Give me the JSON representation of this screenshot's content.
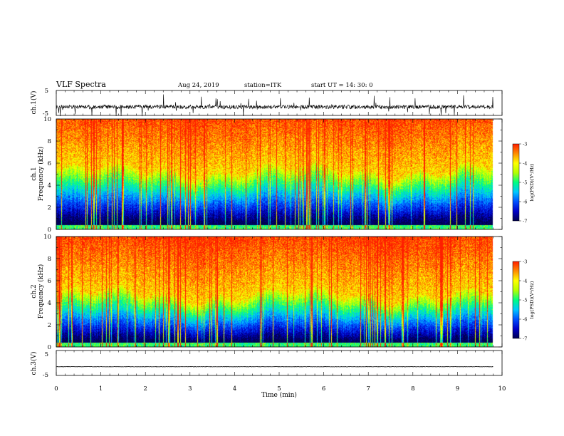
{
  "header": {
    "title": "VLF Spectra",
    "date": "Aug 24, 2019",
    "station": "station=ITK",
    "start": "start UT =  14: 30: 0"
  },
  "colors": {
    "colormap": [
      "#000050",
      "#0000c8",
      "#0050ff",
      "#00c8ff",
      "#00ff80",
      "#b4ff00",
      "#ffff00",
      "#ff8c00",
      "#ff1e00"
    ],
    "trace": "#000000"
  },
  "chart_data": [
    {
      "type": "line",
      "name": "waveform-ch1",
      "ylabel": "ch.1(V)",
      "ylim": [
        -5,
        5
      ],
      "yticks": [
        "5",
        "-5"
      ],
      "xlim": [
        0,
        10
      ],
      "x_end": 9.8,
      "baseline": -1.6,
      "grid": false
    },
    {
      "type": "heatmap",
      "name": "spectrogram-ch1",
      "ylabel_line1": "ch.1",
      "ylabel_line2": "Frequency (kHz)",
      "ylim": [
        0,
        10
      ],
      "yticks": [
        "0",
        "2",
        "4",
        "6",
        "8",
        "10"
      ],
      "xlim": [
        0,
        10
      ],
      "x_end": 9.8,
      "colorbar": {
        "label": "log(PSD)(V²/Hz)",
        "range": [
          -7,
          -3
        ],
        "ticks": [
          "-3",
          "-4",
          "-5",
          "-6",
          "-7"
        ]
      }
    },
    {
      "type": "heatmap",
      "name": "spectrogram-ch2",
      "ylabel_line1": "ch.2",
      "ylabel_line2": "Frequency (kHz)",
      "ylim": [
        0,
        10
      ],
      "yticks": [
        "0",
        "2",
        "4",
        "6",
        "8",
        "10"
      ],
      "xlim": [
        0,
        10
      ],
      "x_end": 9.8,
      "colorbar": {
        "label": "log(PSD)(V²/Hz)",
        "range": [
          -7,
          -3
        ],
        "ticks": [
          "-3",
          "-4",
          "-5",
          "-6",
          "-7"
        ]
      }
    },
    {
      "type": "line",
      "name": "waveform-ch3",
      "ylabel": "ch.3(V)",
      "ylim": [
        -5,
        5
      ],
      "yticks": [
        "5",
        "-5"
      ],
      "xlim": [
        0,
        10
      ],
      "x_end": 9.8,
      "baseline": -1.5,
      "grid": false
    }
  ],
  "x_axis": {
    "label": "Time (min)",
    "ticks": [
      "0",
      "1",
      "2",
      "3",
      "4",
      "5",
      "6",
      "7",
      "8",
      "9",
      "10"
    ]
  }
}
